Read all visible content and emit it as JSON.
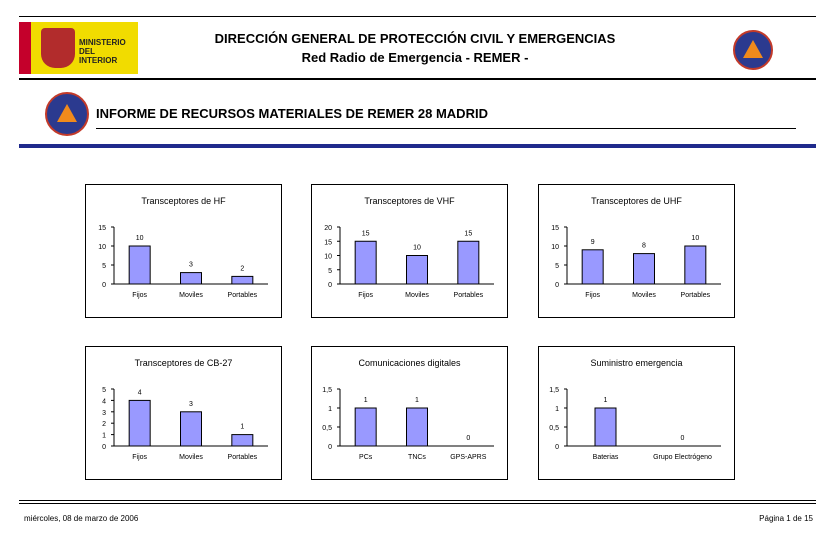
{
  "header": {
    "title": "DIRECCIÓN GENERAL DE PROTECCIÓN CIVIL Y EMERGENCIAS",
    "subtitle": "Red Radio de Emergencia - REMER -",
    "ministry_logo_text": "MINISTERIO DEL INTERIOR"
  },
  "report": {
    "title": "INFORME DE RECURSOS MATERIALES DE REMER 28 MADRID"
  },
  "footer": {
    "date": "miércoles, 08 de marzo de 2006",
    "page": "Página 1 de 15"
  },
  "colors": {
    "bar": "#9999ff",
    "accent": "#1f2a8c"
  },
  "chart_data": [
    {
      "type": "bar",
      "title": "Transceptores de HF",
      "categories": [
        "Fijos",
        "Moviles",
        "Portables"
      ],
      "values": [
        10,
        3,
        2
      ],
      "ylim": [
        0,
        15
      ],
      "yticks": [
        "0",
        "5",
        "10",
        "15"
      ]
    },
    {
      "type": "bar",
      "title": "Transceptores de VHF",
      "categories": [
        "Fijos",
        "Moviles",
        "Portables"
      ],
      "values": [
        15,
        10,
        15
      ],
      "ylim": [
        0,
        20
      ],
      "yticks": [
        "0",
        "5",
        "10",
        "15",
        "20"
      ]
    },
    {
      "type": "bar",
      "title": "Transceptores de UHF",
      "categories": [
        "Fijos",
        "Moviles",
        "Portables"
      ],
      "values": [
        9,
        8,
        10
      ],
      "ylim": [
        0,
        15
      ],
      "yticks": [
        "0",
        "5",
        "10",
        "15"
      ]
    },
    {
      "type": "bar",
      "title": "Transceptores de CB-27",
      "categories": [
        "Fijos",
        "Moviles",
        "Portables"
      ],
      "values": [
        4,
        3,
        1
      ],
      "ylim": [
        0,
        5
      ],
      "yticks": [
        "0",
        "1",
        "2",
        "3",
        "4",
        "5"
      ]
    },
    {
      "type": "bar",
      "title": "Comunicaciones digitales",
      "categories": [
        "PCs",
        "TNCs",
        "GPS-APRS"
      ],
      "values": [
        1,
        1,
        0
      ],
      "ylim": [
        0,
        1.5
      ],
      "yticks": [
        "0",
        "0,5",
        "1",
        "1,5"
      ]
    },
    {
      "type": "bar",
      "title": "Suministro emergencia",
      "categories": [
        "Baterias",
        "Grupo Electrógeno"
      ],
      "values": [
        1,
        0
      ],
      "ylim": [
        0,
        1.5
      ],
      "yticks": [
        "0",
        "0,5",
        "1",
        "1,5"
      ]
    }
  ]
}
